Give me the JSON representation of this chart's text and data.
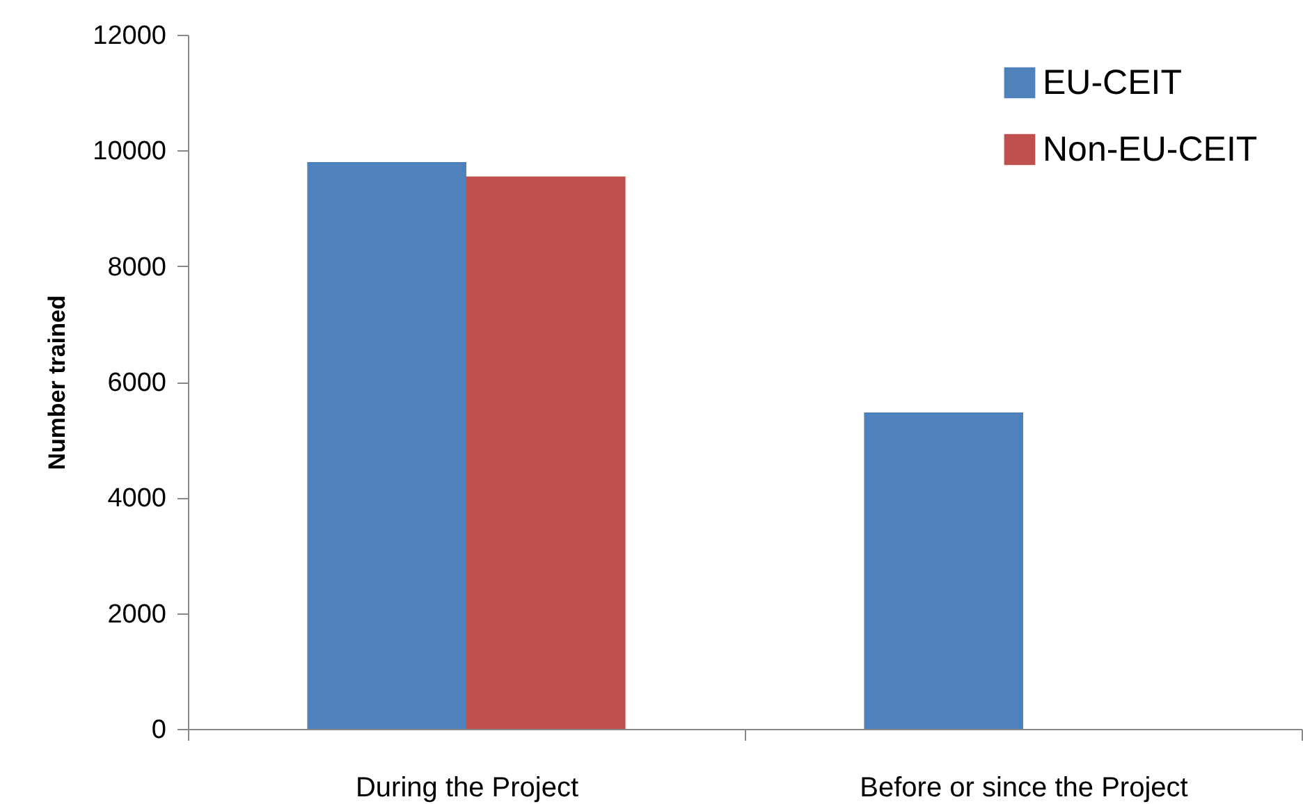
{
  "chart_data": {
    "type": "bar",
    "ylabel": "Number trained",
    "categories": [
      "During the Project",
      "Before or since the Project"
    ],
    "series": [
      {
        "name": "EU-CEIT",
        "color": "#4f81bd",
        "values": [
          9800,
          5470
        ]
      },
      {
        "name": "Non-EU-CEIT",
        "color": "#c0504d",
        "values": [
          9550,
          null
        ]
      }
    ],
    "ylim": [
      0,
      12000
    ],
    "yticks": [
      0,
      2000,
      4000,
      6000,
      8000,
      10000,
      12000
    ],
    "grid": false,
    "legend": "top right"
  }
}
